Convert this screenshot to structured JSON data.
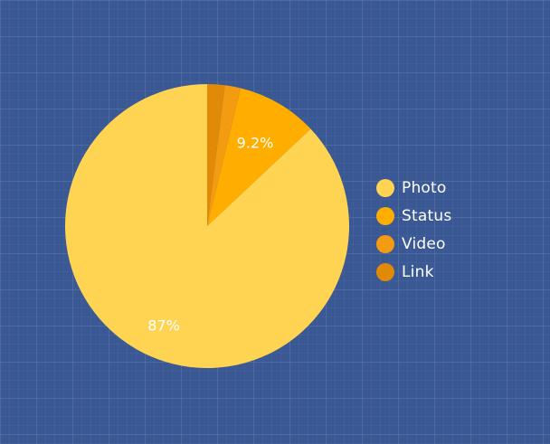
{
  "colors": {
    "background": "#3a5894",
    "label_text": "#ffffff",
    "legend_text": "#ffffff"
  },
  "chart_data": {
    "type": "pie",
    "title": "",
    "slices": [
      {
        "name": "Photo",
        "value": 87.0,
        "label": "87%",
        "color": "#ffd452"
      },
      {
        "name": "Status",
        "value": 9.2,
        "label": "9.2%",
        "color": "#ffae00"
      },
      {
        "name": "Video",
        "value": 1.8,
        "label": "",
        "color": "#f39c12"
      },
      {
        "name": "Link",
        "value": 2.0,
        "label": "",
        "color": "#e08a08"
      }
    ],
    "start_angle_deg": 0,
    "direction": "clockwise",
    "legend": {
      "position": "right",
      "entries": [
        "Photo",
        "Status",
        "Video",
        "Link"
      ]
    }
  }
}
